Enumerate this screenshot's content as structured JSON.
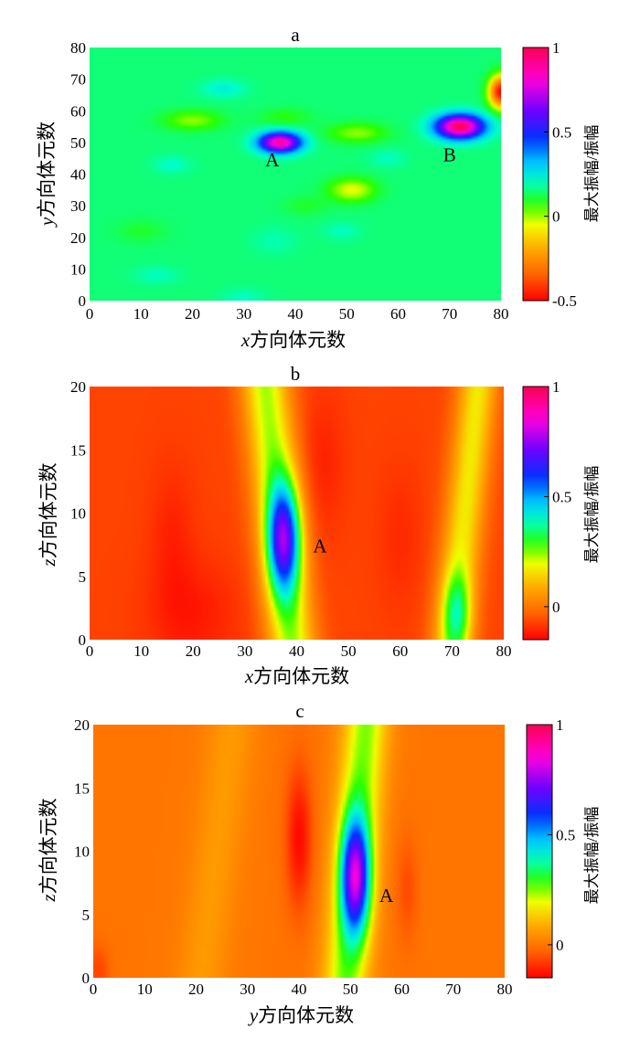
{
  "chart_data": [
    {
      "type": "heatmap",
      "title": "a",
      "xlabel_var": "x",
      "xlabel_text": "方向体元数",
      "ylabel_var": "y",
      "ylabel_text": "方向体元数",
      "xlim": [
        0,
        80
      ],
      "ylim": [
        0,
        80
      ],
      "xticks": [
        0,
        10,
        20,
        30,
        40,
        50,
        60,
        70,
        80
      ],
      "yticks": [
        0,
        10,
        20,
        30,
        40,
        50,
        60,
        70,
        80
      ],
      "colorbar": {
        "label": "最大振幅/振幅",
        "min": -0.5,
        "max": 1,
        "ticks": [
          -0.5,
          0,
          0.5,
          1
        ],
        "tick_labels": [
          "-0.5",
          "0",
          "0.5",
          "1"
        ]
      },
      "background_value": 0.15,
      "features": [
        {
          "x": 37,
          "y": 50,
          "sx": 2.8,
          "sy": 2.2,
          "amp": 0.75
        },
        {
          "x": 72,
          "y": 55,
          "sx": 3.2,
          "sy": 2.6,
          "amp": 0.85
        },
        {
          "x": 80,
          "y": 66,
          "sx": 1.6,
          "sy": 3.5,
          "amp": -0.65
        },
        {
          "x": 20,
          "y": 57,
          "sx": 4,
          "sy": 2.2,
          "amp": -0.14
        },
        {
          "x": 38,
          "y": 58,
          "sx": 3.5,
          "sy": 2,
          "amp": -0.07
        },
        {
          "x": 52,
          "y": 53,
          "sx": 4,
          "sy": 2.2,
          "amp": -0.14
        },
        {
          "x": 51,
          "y": 35,
          "sx": 3.2,
          "sy": 2.6,
          "amp": -0.2
        },
        {
          "x": 10,
          "y": 22,
          "sx": 3.5,
          "sy": 2.5,
          "amp": -0.05
        },
        {
          "x": 42,
          "y": 30,
          "sx": 3,
          "sy": 2.2,
          "amp": -0.05
        },
        {
          "x": 26,
          "y": 67,
          "sx": 3,
          "sy": 2,
          "amp": 0.08
        },
        {
          "x": 16,
          "y": 43,
          "sx": 2.5,
          "sy": 2,
          "amp": 0.06
        },
        {
          "x": 49,
          "y": 22,
          "sx": 2.5,
          "sy": 2,
          "amp": 0.05
        },
        {
          "x": 36,
          "y": 19,
          "sx": 3,
          "sy": 3,
          "amp": 0.04
        },
        {
          "x": 13,
          "y": 8,
          "sx": 3,
          "sy": 2,
          "amp": 0.05
        },
        {
          "x": 30,
          "y": 1,
          "sx": 3,
          "sy": 2,
          "amp": 0.05
        },
        {
          "x": 58,
          "y": 45,
          "sx": 2.5,
          "sy": 2,
          "amp": 0.05
        }
      ],
      "annotations": [
        {
          "text": "A",
          "x": 35.5,
          "y": 42.5
        },
        {
          "text": "B",
          "x": 70,
          "y": 44
        }
      ]
    },
    {
      "type": "heatmap",
      "title": "b",
      "xlabel_var": "x",
      "xlabel_text": "方向体元数",
      "ylabel_var": "z",
      "ylabel_text": "方向体元数",
      "xlim": [
        0,
        80
      ],
      "ylim": [
        0,
        20
      ],
      "xticks": [
        0,
        10,
        20,
        30,
        40,
        50,
        60,
        70,
        80
      ],
      "yticks": [
        0,
        5,
        10,
        15,
        20
      ],
      "colorbar": {
        "label": "最大振幅/振幅",
        "min": -0.15,
        "max": 1,
        "ticks": [
          0,
          0.5,
          1
        ],
        "tick_labels": [
          "0",
          "0.5",
          "1"
        ]
      },
      "background_value": -0.07,
      "ridges": [
        {
          "x_top": 34,
          "x_bottom": 39,
          "width": 3.2,
          "amp": 0.3
        },
        {
          "x_top": 75,
          "x_bottom": 70,
          "width": 2.7,
          "amp": 0.24
        }
      ],
      "features": [
        {
          "x": 37.5,
          "y": 8,
          "sx": 2.2,
          "sy": 3,
          "amp": 0.55
        },
        {
          "x": 71,
          "y": 2,
          "sx": 2,
          "sy": 2.3,
          "amp": 0.22
        },
        {
          "x": 20,
          "y": 2,
          "sx": 6,
          "sy": 3,
          "amp": -0.05
        },
        {
          "x": 16,
          "y": 8,
          "sx": 3,
          "sy": 4,
          "amp": -0.04
        },
        {
          "x": 45,
          "y": 14,
          "sx": 3,
          "sy": 4,
          "amp": -0.04
        },
        {
          "x": 60,
          "y": 8,
          "sx": 3,
          "sy": 4,
          "amp": -0.03
        }
      ],
      "annotations": [
        {
          "text": "A",
          "x": 44.5,
          "y": 6.9
        }
      ]
    },
    {
      "type": "heatmap",
      "title": "c",
      "xlabel_var": "y",
      "xlabel_text": "方向体元数",
      "ylabel_var": "z",
      "ylabel_text": "方向体元数",
      "xlim": [
        0,
        80
      ],
      "ylim": [
        0,
        20
      ],
      "xticks": [
        0,
        10,
        20,
        30,
        40,
        50,
        60,
        70,
        80
      ],
      "yticks": [
        0,
        5,
        10,
        15,
        20
      ],
      "colorbar": {
        "label": "最大振幅/振幅",
        "min": -0.15,
        "max": 1,
        "ticks": [
          0,
          0.5,
          1
        ],
        "tick_labels": [
          "0",
          "0.5",
          "1"
        ]
      },
      "background_value": 0.0,
      "ridges": [
        {
          "x_top": 53,
          "x_bottom": 49,
          "width": 3,
          "amp": 0.25
        },
        {
          "x_top": 27,
          "x_bottom": 21,
          "width": 3.5,
          "amp": 0.06
        }
      ],
      "features": [
        {
          "x": 51,
          "y": 8,
          "sx": 2,
          "sy": 3.2,
          "amp": 0.6
        },
        {
          "x": 40,
          "y": 11,
          "sx": 1.8,
          "sy": 4,
          "amp": -0.14
        },
        {
          "x": 61,
          "y": 7,
          "sx": 1.5,
          "sy": 3,
          "amp": -0.06
        },
        {
          "x": 1,
          "y": 0.5,
          "sx": 1.5,
          "sy": 1.5,
          "amp": -0.07
        }
      ],
      "annotations": [
        {
          "text": "A",
          "x": 57,
          "y": 6
        }
      ]
    }
  ]
}
